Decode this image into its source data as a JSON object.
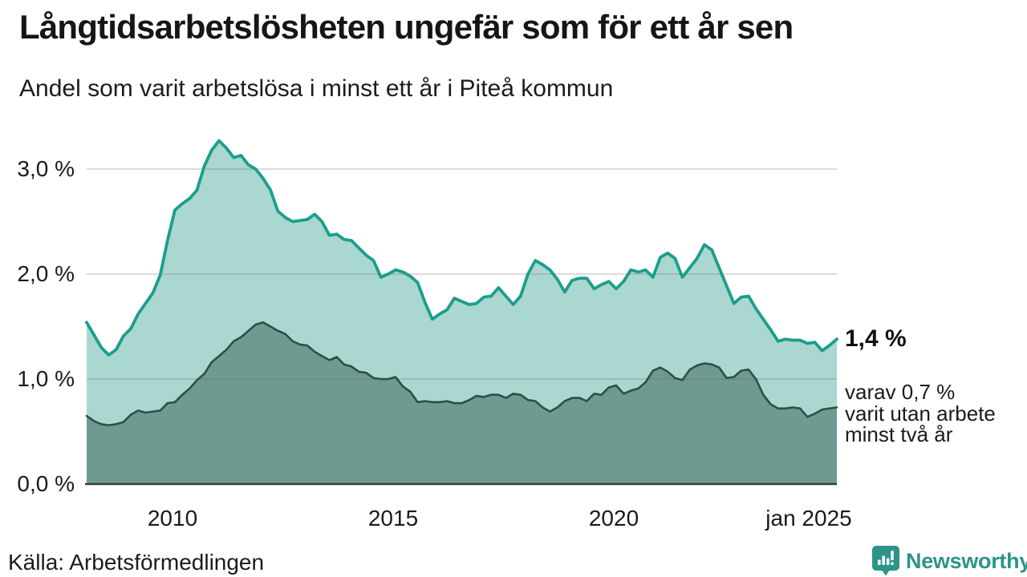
{
  "page": {
    "title": "Långtidsarbetslösheten ungefär som för ett år sen",
    "subtitle": "Andel som varit arbetslösa i minst ett år i Piteå kommun",
    "source": "Källa: Arbetsförmedlingen"
  },
  "annotations": {
    "value": "1,4 %",
    "detail_lines": [
      "varav 0,7 %",
      "varit utan arbete",
      "minst två år"
    ]
  },
  "brand": {
    "name": "Newsworthy",
    "icon": "newsworthy-pin-barchart"
  },
  "colors": {
    "accent_teal": "#1b9e8d",
    "area_light": "#aad7cf",
    "area_dark": "#6f9a91",
    "line_dark": "#2d4f48",
    "grid": "rgba(110,110,110,0.25)",
    "baseline": "#3c3c3c",
    "brand_teal": "#2d9488"
  },
  "chart_data": {
    "type": "area",
    "title": "Långtidsarbetslösheten ungefär som för ett år sen",
    "subtitle": "Andel som varit arbetslösa i minst ett år i Piteå kommun",
    "unit": "%",
    "x_start_year": 2008.0,
    "x_end_year": 2025.0,
    "points_per_year": 6,
    "ylim": [
      0,
      3.5
    ],
    "grid": "horizontal",
    "legend_position": "none",
    "yticks": [
      {
        "label": "0,0 %",
        "value": 0
      },
      {
        "label": "1,0 %",
        "value": 1
      },
      {
        "label": "2,0 %",
        "value": 2
      },
      {
        "label": "3,0 %",
        "value": 3
      }
    ],
    "xticks": [
      {
        "label": "2010",
        "year": 2010
      },
      {
        "label": "2015",
        "year": 2015
      },
      {
        "label": "2020",
        "year": 2020
      },
      {
        "label": "jan 2025",
        "year": 2025
      }
    ],
    "end_values": {
      "unemployed_min_one_year": 1.4,
      "unemployed_min_two_years": 0.7
    },
    "series": [
      {
        "name": "Andel arbetslösa minst ett år",
        "stroke": "#1b9e8d",
        "fill": "#aad7cf",
        "stroke_width": 3.8,
        "values": [
          1.54,
          1.42,
          1.3,
          1.23,
          1.28,
          1.41,
          1.48,
          1.62,
          1.72,
          1.82,
          1.99,
          2.32,
          2.61,
          2.67,
          2.72,
          2.8,
          3.03,
          3.18,
          3.27,
          3.2,
          3.11,
          3.13,
          3.04,
          3.0,
          2.91,
          2.8,
          2.6,
          2.54,
          2.5,
          2.51,
          2.52,
          2.57,
          2.5,
          2.37,
          2.38,
          2.33,
          2.32,
          2.25,
          2.18,
          2.13,
          1.97,
          2.0,
          2.04,
          2.02,
          1.98,
          1.92,
          1.73,
          1.57,
          1.62,
          1.66,
          1.77,
          1.74,
          1.71,
          1.72,
          1.78,
          1.79,
          1.87,
          1.79,
          1.71,
          1.79,
          2.0,
          2.13,
          2.09,
          2.04,
          1.95,
          1.83,
          1.94,
          1.96,
          1.96,
          1.86,
          1.9,
          1.93,
          1.86,
          1.93,
          2.04,
          2.02,
          2.04,
          1.97,
          2.16,
          2.2,
          2.15,
          1.97,
          2.06,
          2.15,
          2.28,
          2.23,
          2.06,
          1.89,
          1.72,
          1.78,
          1.79,
          1.67,
          1.57,
          1.47,
          1.36,
          1.38,
          1.37,
          1.37,
          1.34,
          1.35,
          1.27,
          1.32,
          1.38
        ]
      },
      {
        "name": "Andel arbetslösa minst två år",
        "stroke": "#2d4f48",
        "fill": "#6f9a91",
        "stroke_width": 2.6,
        "values": [
          0.65,
          0.6,
          0.57,
          0.56,
          0.57,
          0.59,
          0.66,
          0.7,
          0.68,
          0.69,
          0.7,
          0.77,
          0.78,
          0.85,
          0.91,
          0.99,
          1.05,
          1.16,
          1.22,
          1.28,
          1.36,
          1.4,
          1.46,
          1.52,
          1.54,
          1.5,
          1.46,
          1.43,
          1.36,
          1.33,
          1.32,
          1.26,
          1.22,
          1.18,
          1.21,
          1.14,
          1.12,
          1.07,
          1.06,
          1.01,
          1.0,
          1.0,
          1.02,
          0.93,
          0.88,
          0.78,
          0.79,
          0.78,
          0.78,
          0.79,
          0.77,
          0.77,
          0.8,
          0.84,
          0.83,
          0.85,
          0.85,
          0.82,
          0.86,
          0.85,
          0.8,
          0.79,
          0.73,
          0.69,
          0.73,
          0.79,
          0.82,
          0.82,
          0.79,
          0.86,
          0.85,
          0.92,
          0.94,
          0.86,
          0.89,
          0.91,
          0.97,
          1.08,
          1.11,
          1.07,
          1.01,
          0.99,
          1.09,
          1.13,
          1.15,
          1.14,
          1.11,
          1.01,
          1.02,
          1.08,
          1.09,
          1.0,
          0.85,
          0.76,
          0.72,
          0.72,
          0.73,
          0.72,
          0.64,
          0.67,
          0.71,
          0.72,
          0.73
        ]
      }
    ]
  }
}
